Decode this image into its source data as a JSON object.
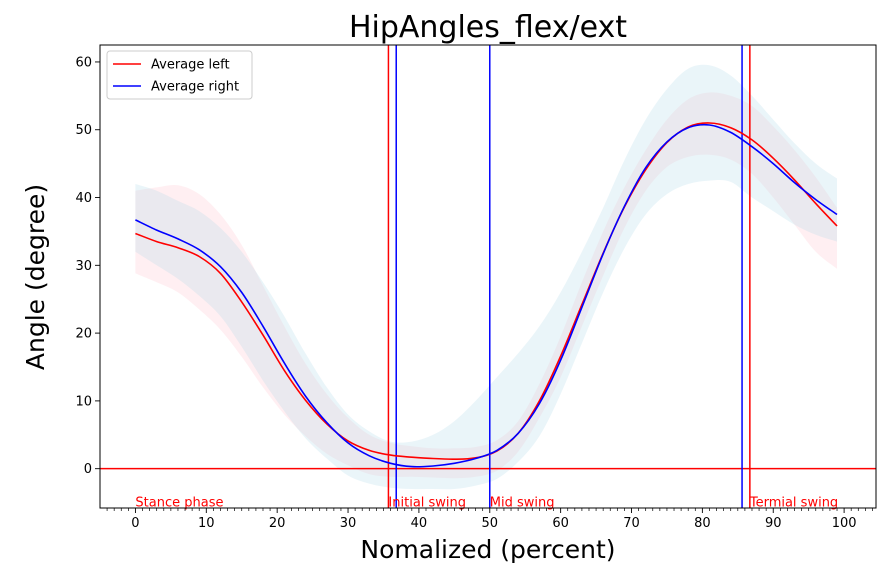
{
  "chart_data": {
    "type": "line",
    "title": "HipAngles_flex/ext",
    "xlabel": "Nomalized (percent)",
    "ylabel": "Angle (degree)",
    "xlim": [
      -5,
      104.5
    ],
    "ylim": [
      -5.8,
      62.5
    ],
    "xticks": [
      "0",
      "10",
      "20",
      "30",
      "40",
      "50",
      "60",
      "70",
      "80",
      "90",
      "100"
    ],
    "yticks": [
      "0",
      "10",
      "20",
      "30",
      "40",
      "50",
      "60"
    ],
    "grid": false,
    "legend_position": "top-left",
    "series": [
      {
        "name": "Average left",
        "color": "#ff0000",
        "band_color": "#ffc0cb",
        "x": [
          0,
          3,
          6,
          9,
          12,
          15,
          18,
          21,
          24,
          27,
          30,
          33,
          36,
          39,
          42,
          45,
          48,
          51,
          54,
          57,
          60,
          63,
          66,
          69,
          72,
          75,
          78,
          81,
          84,
          87,
          90,
          93,
          96,
          99
        ],
        "values": [
          34.7,
          33.5,
          32.6,
          31.3,
          28.8,
          24.6,
          19.7,
          14.5,
          10.1,
          6.6,
          4.1,
          2.7,
          2.0,
          1.7,
          1.5,
          1.4,
          1.6,
          2.6,
          5.2,
          10.0,
          16.6,
          24.2,
          31.8,
          38.6,
          44.1,
          48.1,
          50.4,
          51.0,
          50.3,
          48.5,
          45.8,
          42.6,
          39.1,
          35.8
        ],
        "upper": [
          41.0,
          41.5,
          41.8,
          40.5,
          37.5,
          33.0,
          27.0,
          21.0,
          15.5,
          11.0,
          7.5,
          5.0,
          3.8,
          3.3,
          3.0,
          3.0,
          3.2,
          4.2,
          7.0,
          12.5,
          19.5,
          27.5,
          35.0,
          41.5,
          47.0,
          51.5,
          54.5,
          55.5,
          55.0,
          53.5,
          50.5,
          47.0,
          43.0,
          38.5
        ],
        "lower": [
          28.8,
          27.5,
          26.0,
          23.5,
          20.5,
          16.5,
          12.0,
          8.0,
          4.8,
          2.2,
          0.5,
          -0.8,
          -1.2,
          -1.2,
          -1.3,
          -1.4,
          -1.2,
          -0.3,
          2.5,
          7.5,
          13.5,
          21.0,
          28.5,
          35.5,
          41.0,
          44.5,
          46.0,
          46.3,
          45.6,
          43.5,
          40.0,
          36.0,
          32.0,
          29.5
        ]
      },
      {
        "name": "Average right",
        "color": "#0000ff",
        "band_color": "#add8e6",
        "x": [
          0,
          3,
          6,
          9,
          12,
          15,
          18,
          21,
          24,
          27,
          30,
          33,
          36,
          39,
          42,
          45,
          48,
          51,
          54,
          57,
          60,
          63,
          66,
          69,
          72,
          75,
          78,
          81,
          84,
          87,
          90,
          93,
          96,
          99
        ],
        "values": [
          36.7,
          35.2,
          33.9,
          32.3,
          29.8,
          26.0,
          21.0,
          15.6,
          10.7,
          6.8,
          3.8,
          1.9,
          0.8,
          0.3,
          0.4,
          0.8,
          1.5,
          2.7,
          5.2,
          9.6,
          16.0,
          23.8,
          31.7,
          38.7,
          44.4,
          48.2,
          50.3,
          50.7,
          49.6,
          47.5,
          45.0,
          42.2,
          39.7,
          37.5
        ],
        "upper": [
          42.0,
          41.0,
          39.5,
          38.0,
          35.5,
          32.0,
          27.5,
          22.5,
          17.0,
          12.0,
          8.0,
          5.5,
          4.0,
          4.0,
          5.0,
          7.0,
          10.0,
          13.5,
          17.0,
          21.0,
          26.0,
          32.0,
          38.5,
          45.5,
          51.5,
          56.0,
          59.0,
          59.5,
          58.0,
          55.0,
          51.5,
          48.0,
          45.0,
          42.8
        ],
        "lower": [
          32.0,
          30.0,
          28.0,
          25.5,
          22.5,
          18.0,
          13.0,
          8.5,
          4.5,
          1.5,
          -1.0,
          -2.2,
          -2.8,
          -3.0,
          -3.0,
          -3.0,
          -2.5,
          -1.5,
          1.0,
          4.8,
          11.0,
          18.5,
          26.0,
          32.5,
          37.5,
          40.5,
          42.0,
          42.5,
          42.3,
          40.0,
          38.0,
          36.0,
          34.5,
          33.5
        ]
      }
    ],
    "reference_lines": [
      {
        "orientation": "horizontal",
        "y": 0,
        "color": "#ff0000"
      },
      {
        "orientation": "vertical",
        "x": 35.7,
        "color": "#ff0000"
      },
      {
        "orientation": "vertical",
        "x": 36.8,
        "color": "#0000ff"
      },
      {
        "orientation": "vertical",
        "x": 50.0,
        "color": "#0000ff"
      },
      {
        "orientation": "vertical",
        "x": 85.6,
        "color": "#0000ff"
      },
      {
        "orientation": "vertical",
        "x": 86.7,
        "color": "#ff0000"
      }
    ],
    "phase_labels": [
      {
        "text": "Stance phase",
        "x": 0,
        "y": -5,
        "color": "#ff0000"
      },
      {
        "text": "Initial swing",
        "x": 35.7,
        "y": -5,
        "color": "#ff0000"
      },
      {
        "text": "Mid swing",
        "x": 50.0,
        "y": -5,
        "color": "#ff0000"
      },
      {
        "text": "Termial swing",
        "x": 86.7,
        "y": -5,
        "color": "#ff0000"
      }
    ]
  }
}
